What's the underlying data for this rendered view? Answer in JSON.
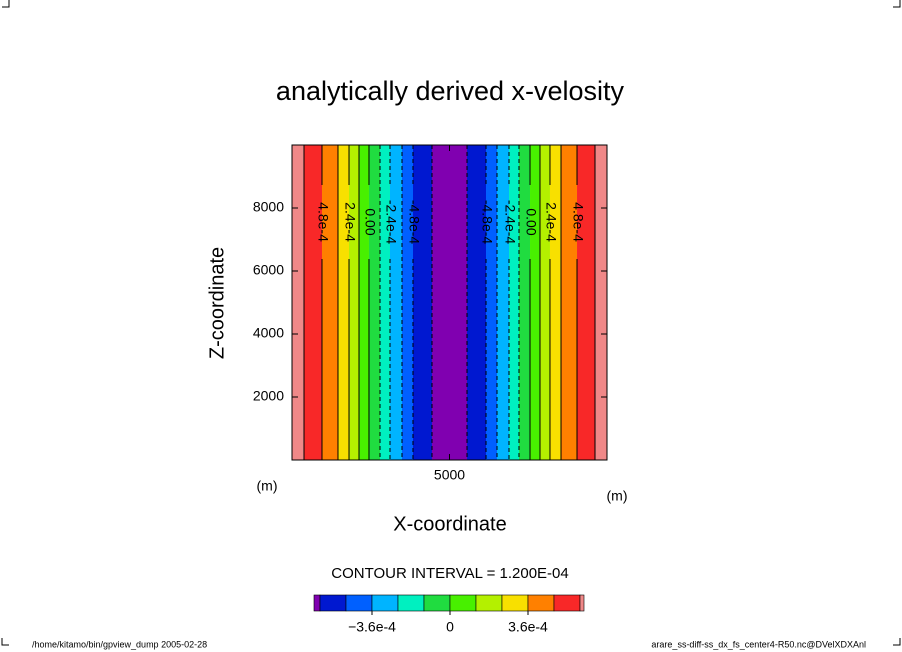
{
  "chart_data": {
    "type": "contour",
    "title": "analytically derived x-velosity",
    "x_label": "X-coordinate",
    "y_label": "Z-coordinate",
    "x_unit": "(m)",
    "y_unit": "(m)",
    "xlim": [
      0,
      10000
    ],
    "ylim": [
      0,
      10000
    ],
    "xticks": [
      5000
    ],
    "yticks": [
      2000,
      4000,
      6000,
      8000
    ],
    "contour_interval": "CONTOUR INTERVAL = 1.200E-04",
    "contours": {
      "x": [
        381,
        952,
        1460,
        1810,
        2127,
        2444,
        2794,
        3111,
        3492,
        3841,
        4444,
        5556,
        6159,
        6508,
        6889,
        7206,
        7556,
        7873,
        8190,
        8540,
        9048,
        9619
      ],
      "levels": [
        0.0006,
        0.00048,
        0.00036,
        0.00024,
        0.00012,
        0,
        -0.00012,
        -0.00024,
        -0.00036,
        -0.00048,
        -0.0006,
        -0.0006,
        -0.00048,
        -0.00036,
        -0.00024,
        -0.00012,
        0,
        0.00012,
        0.00024,
        0.00036,
        0.00048,
        0.0006
      ],
      "labels": [
        null,
        "4.8e-4",
        null,
        "2.4e-4",
        null,
        "0.00",
        null,
        "-2.4e-4",
        null,
        "-4.8e-4",
        null,
        null,
        "-4.8e-4",
        null,
        "-2.4e-4",
        null,
        "0.00",
        null,
        "2.4e-4",
        null,
        "4.8e-4",
        null
      ]
    },
    "colorbar": {
      "levels": [
        -0.0006,
        -0.00048,
        -0.00036,
        -0.00024,
        -0.00012,
        0,
        0.00012,
        0.00024,
        0.00036,
        0.00048,
        0.0006
      ],
      "colors": [
        "#8000b0",
        "#0018d0",
        "#0060ff",
        "#00b4ff",
        "#00f0c0",
        "#20dc40",
        "#48f000",
        "#b4f000",
        "#f8e000",
        "#ff8000",
        "#f82828",
        "#f08888"
      ],
      "ticks": [
        {
          "value": -0.00036,
          "label": "−3.6e-4"
        },
        0,
        {
          "value": 0.00036,
          "label": "3.6e-4"
        }
      ]
    }
  },
  "footer": {
    "left": "/home/kitamo/bin/gpview_dump  2005-02-28",
    "right": "arare_ss-diff-ss_dx_fs_center4-R50.nc@DVelXDXAnl"
  }
}
